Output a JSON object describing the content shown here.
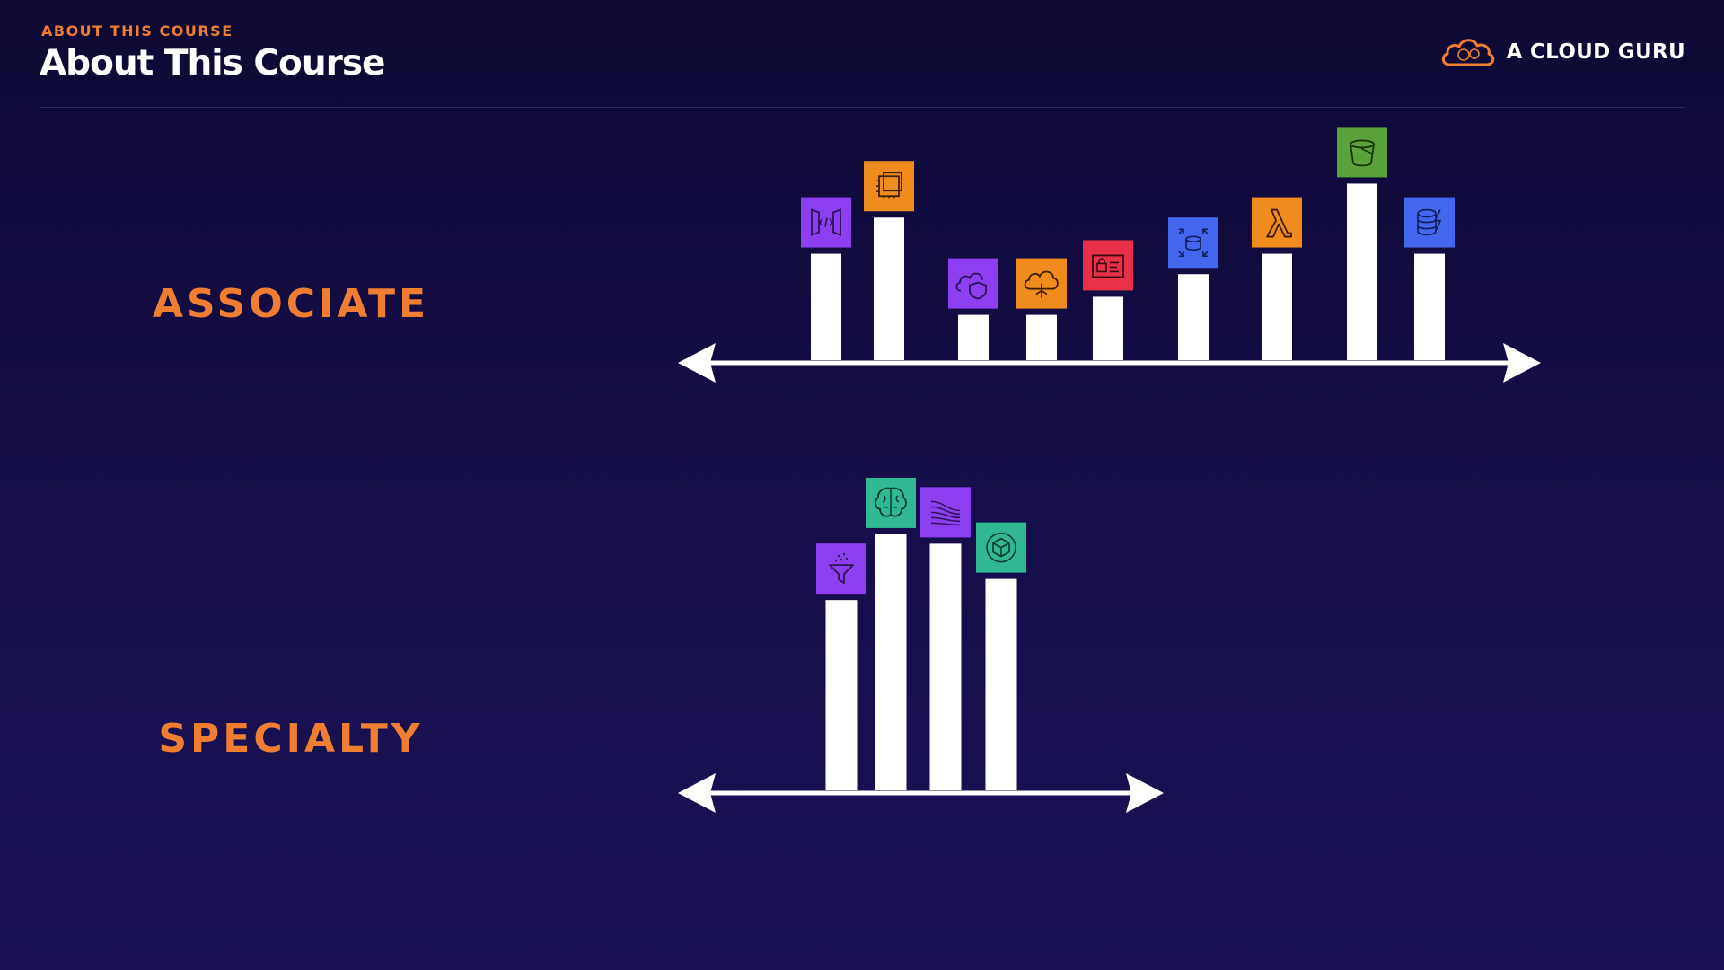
{
  "header": {
    "eyebrow": "ABOUT THIS COURSE",
    "title": "About This Course"
  },
  "brand": {
    "name": "A CLOUD GURU",
    "icon": "cloud-logo-icon",
    "color": "#f07e32"
  },
  "colors": {
    "accent": "#f07e32",
    "bar": "#ffffff",
    "background": "#140d48"
  },
  "chart_data": [
    {
      "type": "bar",
      "title": "ASSOCIATE",
      "categories": [
        "api-gateway",
        "ec2",
        "shield",
        "cloud-network",
        "secrets-manager",
        "rds",
        "lambda",
        "s3",
        "dynamodb"
      ],
      "values": [
        47,
        63,
        20,
        20,
        28,
        38,
        47,
        78,
        47
      ],
      "icons": [
        {
          "name": "api-gateway-icon",
          "color": "#8b3ff0"
        },
        {
          "name": "ec2-chip-icon",
          "color": "#f08c1e"
        },
        {
          "name": "cloud-shield-icon",
          "color": "#8b3ff0"
        },
        {
          "name": "cloud-tree-icon",
          "color": "#f08c1e"
        },
        {
          "name": "secure-id-icon",
          "color": "#e8304a"
        },
        {
          "name": "database-expand-icon",
          "color": "#4366ee"
        },
        {
          "name": "lambda-icon",
          "color": "#f08c1e"
        },
        {
          "name": "bucket-icon",
          "color": "#5aa23a"
        },
        {
          "name": "database-bolt-icon",
          "color": "#4366ee"
        }
      ],
      "ylim": [
        0,
        100
      ],
      "grid": false,
      "legend": "none"
    },
    {
      "type": "bar",
      "title": "SPECIALTY",
      "categories": [
        "glue",
        "sagemaker-brain",
        "kinesis",
        "ml-model"
      ],
      "values": [
        81,
        109,
        105,
        90
      ],
      "icons": [
        {
          "name": "funnel-icon",
          "color": "#8b3ff0"
        },
        {
          "name": "brain-icon",
          "color": "#2fb892"
        },
        {
          "name": "stream-icon",
          "color": "#8b3ff0"
        },
        {
          "name": "cube-icon",
          "color": "#2fb892"
        }
      ],
      "ylim": [
        0,
        130
      ],
      "grid": false,
      "legend": "none"
    }
  ]
}
